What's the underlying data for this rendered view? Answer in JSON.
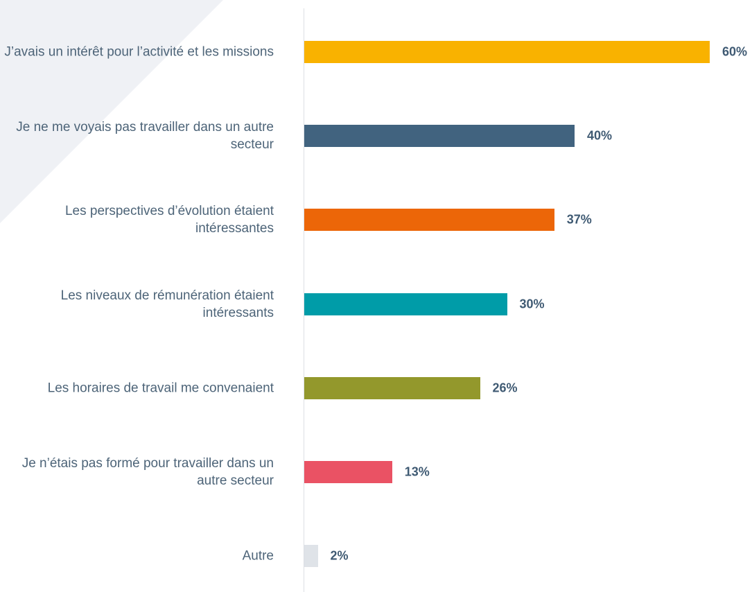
{
  "chart_data": {
    "type": "bar",
    "orientation": "horizontal",
    "categories": [
      "J’avais un intérêt pour l’activité et les missions",
      "Je ne me voyais pas travailler dans un autre secteur",
      "Les perspectives d’évolution étaient intéressantes",
      "Les niveaux de rémunération étaient intéressants",
      "Les horaires de travail me convenaient",
      "Je n’étais pas formé pour travailler dans un autre secteur",
      "Autre"
    ],
    "values": [
      60,
      40,
      37,
      30,
      26,
      13,
      2
    ],
    "value_labels": [
      "60%",
      "40%",
      "37%",
      "30%",
      "26%",
      "13%",
      "2%"
    ],
    "colors": [
      "#f9b200",
      "#41637f",
      "#ec6608",
      "#009ca8",
      "#93982c",
      "#ea5264",
      "#dfe3e8"
    ]
  }
}
